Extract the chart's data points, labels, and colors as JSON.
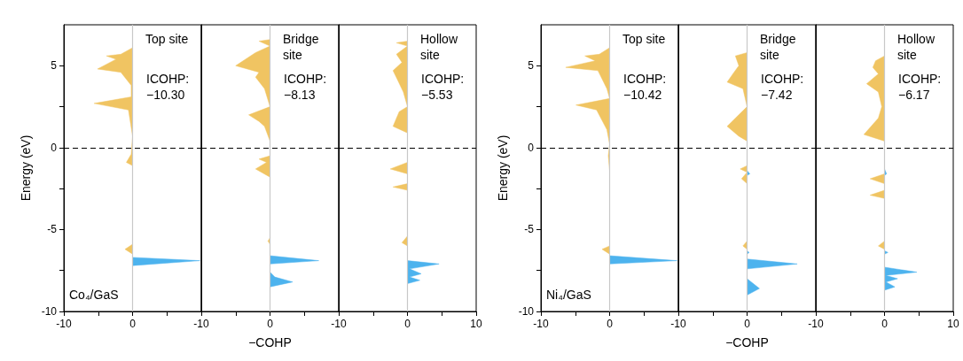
{
  "chart_data": [
    {
      "type": "area",
      "title": "Top site",
      "ylabel": "Energy (eV)",
      "annotations": [
        "ICOHP: −10.30",
        "Co₄/GaS"
      ],
      "xlim": [
        -10,
        10
      ],
      "xticks": [
        -10,
        {
          "value": -5,
          "label": null
        },
        0,
        {
          "value": 5,
          "label": null
        },
        {
          "value": 10,
          "label": null
        }
      ],
      "ylim": [
        -10,
        7.5
      ],
      "yticks": [
        -10,
        {
          "value": -7.5,
          "label": null
        },
        -5,
        {
          "value": -2.5,
          "label": null
        },
        0,
        {
          "value": 2.5,
          "label": null
        },
        5
      ],
      "ref_lines": [
        {
          "axis": "x",
          "value": 0,
          "label": null,
          "color": "#c8c8c8",
          "line_style": "solid"
        },
        {
          "axis": "y",
          "value": 0,
          "label": null,
          "color": "#000000",
          "line_style": "dashed"
        }
      ],
      "series": [
        {
          "color": "#f0c462",
          "x": [
            0,
            -1.7,
            -3.8,
            -2.4,
            -5.1,
            -1.7,
            -0.2,
            -0.2,
            -5.6,
            -0.6,
            0,
            -0.2,
            -0.9,
            0,
            0,
            -1.1,
            0
          ],
          "values": [
            6.1,
            5.7,
            5.6,
            5.4,
            4.8,
            4.6,
            3.8,
            3.1,
            2.7,
            2.3,
            0.7,
            -0.4,
            -0.9,
            -1.1,
            -5.9,
            -6.2,
            -6.5
          ]
        },
        {
          "color": "#4db3ee",
          "x": [
            0,
            9.8,
            0
          ],
          "values": [
            -6.7,
            -6.9,
            -7.2
          ]
        }
      ]
    },
    {
      "type": "area",
      "title": "Bridge site",
      "xlabel": "−COHP",
      "annotations": [
        "ICOHP: −8.13"
      ],
      "tick_labels": "x",
      "xlim": [
        -10,
        10
      ],
      "xticks": [
        -10,
        {
          "value": -5,
          "label": null
        },
        0,
        {
          "value": 5,
          "label": null
        },
        {
          "value": 10,
          "label": null
        }
      ],
      "ylim": [
        -10,
        7.5
      ],
      "ref_lines": [
        {
          "axis": "x",
          "value": 0,
          "label": null,
          "color": "#c8c8c8",
          "line_style": "solid"
        },
        {
          "axis": "y",
          "value": 0,
          "label": null,
          "color": "#000000",
          "line_style": "dashed"
        }
      ],
      "series": [
        {
          "color": "#f0c462",
          "x": [
            0,
            -1.6,
            0,
            -2.1,
            -5.0,
            -1.6,
            -2.1,
            -0.8,
            0,
            -3.1,
            -1.6,
            -0.8,
            0,
            0,
            -1.6,
            -0.5,
            -2.1,
            0,
            0,
            -0.3,
            0
          ],
          "values": [
            6.6,
            6.5,
            6.2,
            5.8,
            5.0,
            4.6,
            4.3,
            3.6,
            2.5,
            2.0,
            1.6,
            1.3,
            0.4,
            -0.5,
            -0.7,
            -0.9,
            -1.3,
            -1.8,
            -5.5,
            -5.7,
            -5.9
          ]
        },
        {
          "color": "#4db3ee",
          "x": [
            0,
            7.1,
            0,
            0,
            0.7,
            3.3,
            0
          ],
          "values": [
            -6.6,
            -6.9,
            -7.1,
            -7.6,
            -7.9,
            -8.2,
            -8.5
          ]
        }
      ]
    },
    {
      "type": "area",
      "title": "Hollow site",
      "annotations": [
        "ICOHP: −5.53"
      ],
      "tick_labels": "x",
      "xlim": [
        -10,
        10
      ],
      "xticks": [
        -10,
        {
          "value": -5,
          "label": null
        },
        0,
        {
          "value": 5,
          "label": null
        },
        10
      ],
      "ylim": [
        -10,
        7.5
      ],
      "ref_lines": [
        {
          "axis": "x",
          "value": 0,
          "label": null,
          "color": "#c8c8c8",
          "line_style": "solid"
        },
        {
          "axis": "y",
          "value": 0,
          "label": null,
          "color": "#000000",
          "line_style": "dashed"
        }
      ],
      "series": [
        {
          "color": "#f0c462",
          "x": [
            0,
            -1.6,
            0,
            -1.6,
            -0.8,
            -2.1,
            -1.4,
            -0.6,
            0,
            -1.2,
            -2.1,
            0,
            0,
            -2.5,
            0,
            0,
            -2.1,
            0,
            0,
            -0.8,
            0
          ],
          "values": [
            6.5,
            6.4,
            6.2,
            5.7,
            5.2,
            4.7,
            4.1,
            3.4,
            2.5,
            2.2,
            1.3,
            0.9,
            -0.9,
            -1.3,
            -1.6,
            -2.2,
            -2.4,
            -2.6,
            -5.4,
            -5.8,
            -6.0
          ]
        },
        {
          "color": "#4db3ee",
          "x": [
            0,
            4.6,
            0.3,
            2.0,
            0.3,
            1.8,
            0
          ],
          "values": [
            -6.9,
            -7.1,
            -7.4,
            -7.7,
            -7.9,
            -8.1,
            -8.3
          ]
        }
      ]
    },
    {
      "type": "area",
      "title": "Top site",
      "ylabel": "Energy (eV)",
      "annotations": [
        "ICOHP: −10.42",
        "Ni₄/GaS"
      ],
      "xlim": [
        -10,
        10
      ],
      "xticks": [
        -10,
        {
          "value": -5,
          "label": null
        },
        0,
        {
          "value": 5,
          "label": null
        },
        {
          "value": 10,
          "label": null
        }
      ],
      "ylim": [
        -10,
        7.5
      ],
      "yticks": [
        -10,
        {
          "value": -7.5,
          "label": null
        },
        -5,
        {
          "value": -2.5,
          "label": null
        },
        0,
        {
          "value": 2.5,
          "label": null
        },
        5
      ],
      "ref_lines": [
        {
          "axis": "x",
          "value": 0,
          "label": null,
          "color": "#c8c8c8",
          "line_style": "solid"
        },
        {
          "axis": "y",
          "value": 0,
          "label": null,
          "color": "#000000",
          "line_style": "dashed"
        }
      ],
      "series": [
        {
          "color": "#f0c462",
          "x": [
            0,
            -1.5,
            -3.6,
            -2.1,
            -6.4,
            -1.7,
            -0.4,
            0,
            -4.9,
            -1.9,
            -0.4,
            0,
            -0.2,
            0,
            0,
            -1.1,
            0
          ],
          "values": [
            6.1,
            5.7,
            5.6,
            5.3,
            4.9,
            4.7,
            3.6,
            3.0,
            2.6,
            2.3,
            1.1,
            0.2,
            -0.5,
            -1.4,
            -6.0,
            -6.2,
            -6.5
          ]
        },
        {
          "color": "#4db3ee",
          "x": [
            0,
            9.8,
            0
          ],
          "values": [
            -6.6,
            -6.9,
            -7.1
          ]
        }
      ]
    },
    {
      "type": "area",
      "title": "Bridge site",
      "xlabel": "−COHP",
      "annotations": [
        "ICOHP: −7.42"
      ],
      "tick_labels": "x",
      "xlim": [
        -10,
        10
      ],
      "xticks": [
        -10,
        {
          "value": -5,
          "label": null
        },
        0,
        {
          "value": 5,
          "label": null
        },
        {
          "value": 10,
          "label": null
        }
      ],
      "ylim": [
        -10,
        7.5
      ],
      "ref_lines": [
        {
          "axis": "x",
          "value": 0,
          "label": null,
          "color": "#c8c8c8",
          "line_style": "solid"
        },
        {
          "axis": "y",
          "value": 0,
          "label": null,
          "color": "#000000",
          "line_style": "dashed"
        }
      ],
      "series": [
        {
          "color": "#f0c462",
          "x": [
            0,
            -1.7,
            -1.2,
            -1.9,
            -2.9,
            -0.6,
            0,
            -1.7,
            -2.9,
            -1.2,
            0,
            0,
            -1.0,
            0,
            -0.8,
            0,
            0,
            -0.6,
            0
          ],
          "values": [
            5.8,
            5.6,
            5.0,
            4.6,
            4.0,
            3.6,
            2.5,
            1.8,
            1.3,
            0.7,
            0.4,
            -1.1,
            -1.3,
            -1.5,
            -1.9,
            -2.2,
            -5.7,
            -6.0,
            -6.2
          ]
        },
        {
          "color": "#4db3ee",
          "x": [
            0,
            0.4,
            0,
            0,
            0.3,
            0,
            0,
            7.3,
            0,
            0,
            1.8,
            0
          ],
          "values": [
            -1.4,
            -1.6,
            -1.7,
            -6.3,
            -6.4,
            -6.5,
            -6.8,
            -7.1,
            -7.4,
            -8.0,
            -8.6,
            -9.0
          ]
        }
      ]
    },
    {
      "type": "area",
      "title": "Hollow site",
      "annotations": [
        "ICOHP: −6.17"
      ],
      "tick_labels": "x",
      "xlim": [
        -10,
        10
      ],
      "xticks": [
        -10,
        {
          "value": -5,
          "label": null
        },
        0,
        {
          "value": 5,
          "label": null
        },
        10
      ],
      "ylim": [
        -10,
        7.5
      ],
      "ref_lines": [
        {
          "axis": "x",
          "value": 0,
          "label": null,
          "color": "#c8c8c8",
          "line_style": "solid"
        },
        {
          "axis": "y",
          "value": 0,
          "label": null,
          "color": "#000000",
          "line_style": "dashed"
        }
      ],
      "series": [
        {
          "color": "#f0c462",
          "x": [
            0,
            -1.3,
            -1.7,
            -0.9,
            -2.6,
            -0.9,
            -0.4,
            -0.9,
            -3.0,
            0,
            0,
            -2.1,
            0,
            0,
            -2.1,
            0,
            0,
            -0.9,
            0
          ],
          "values": [
            5.6,
            5.3,
            4.9,
            4.5,
            3.9,
            3.4,
            2.5,
            1.8,
            0.8,
            0.4,
            -1.6,
            -1.9,
            -2.2,
            -2.6,
            -2.9,
            -3.1,
            -5.7,
            -6.0,
            -6.2
          ]
        },
        {
          "color": "#4db3ee",
          "x": [
            0,
            0.3,
            0,
            0,
            0.5,
            0,
            0,
            4.7,
            0.2,
            1.9,
            0.2,
            1.5,
            0
          ],
          "values": [
            -1.3,
            -1.6,
            -1.7,
            -6.3,
            -6.4,
            -6.5,
            -7.3,
            -7.6,
            -7.8,
            -8.0,
            -8.2,
            -8.5,
            -8.7
          ]
        }
      ]
    }
  ]
}
